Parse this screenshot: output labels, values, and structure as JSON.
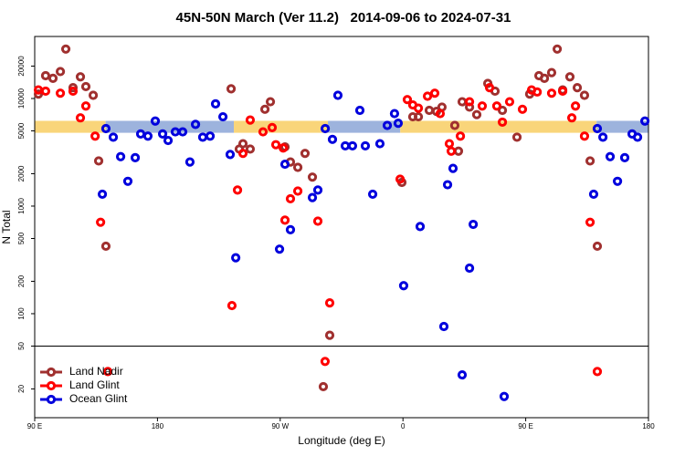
{
  "chart_data": {
    "type": "scatter",
    "title": "45N-50N March (Ver 11.2)   2014-09-06 to 2024-07-31",
    "x_label": "Longitude (deg E)",
    "y_label": "N Total",
    "log_y": true,
    "legend": "bottom-left",
    "divider": 50,
    "xlim": [
      90,
      540
    ],
    "xticks": [
      {
        "value": 90,
        "label": "90 E"
      },
      {
        "value": 180,
        "label": "180"
      },
      {
        "value": 270,
        "label": "90 W"
      },
      {
        "value": 360,
        "label": "0"
      },
      {
        "value": 450,
        "label": "90 E"
      },
      {
        "value": 540,
        "label": "180"
      }
    ],
    "ylim": [
      10.8,
      37700
    ],
    "yticks": [
      20,
      50,
      100,
      200,
      500,
      1000,
      2000,
      5000,
      10000,
      20000
    ],
    "surface_band": {
      "ylim": [
        4800,
        6200
      ],
      "segments": [
        {
          "start": 90,
          "end": 142,
          "color": "#f9d57a"
        },
        {
          "start": 142,
          "end": 236,
          "color": "#9db3dd"
        },
        {
          "start": 236,
          "end": 305,
          "color": "#f9d57a"
        },
        {
          "start": 305,
          "end": 358,
          "color": "#9db3dd"
        },
        {
          "start": 358,
          "end": 502,
          "color": "#f9d57a"
        },
        {
          "start": 502,
          "end": 540,
          "color": "#9db3dd"
        }
      ]
    },
    "series": [
      {
        "name": "Land Nadir",
        "color": "#a0302f",
        "x": [
          92.7,
          98,
          103.4,
          108.8,
          112.8,
          118.1,
          123.5,
          127.5,
          132.9,
          136.9,
          142.2,
          234,
          240,
          242.7,
          248,
          262.8,
          258.8,
          273.5,
          277.5,
          282.9,
          288.2,
          293.6,
          301.6,
          306.3,
          359.2,
          367.2,
          371.3,
          379.3,
          384.6,
          388.6,
          398,
          400.7,
          403.4,
          408.8,
          414.1,
          422.2,
          427.5,
          432.9,
          443.6,
          452.9,
          459.7,
          463.7,
          469,
          473.1,
          477.1,
          482.4,
          487.8,
          493.1,
          497.2,
          502.5
        ],
        "values": [
          11000,
          16300,
          15400,
          17800,
          28800,
          12600,
          15900,
          12900,
          10700,
          2630,
          424,
          12300,
          3390,
          3800,
          3390,
          9330,
          7940,
          3550,
          2570,
          2290,
          3090,
          1860,
          21,
          63,
          1660,
          6760,
          6760,
          7760,
          7590,
          8320,
          5620,
          3240,
          9330,
          8320,
          7080,
          13800,
          11700,
          7760,
          4370,
          11000,
          16300,
          15400,
          17400,
          28800,
          12000,
          15900,
          12600,
          10700,
          2630,
          424
        ]
      },
      {
        "name": "Land Glint",
        "color": "#ff0000",
        "x": [
          92.7,
          98,
          108.8,
          118.1,
          127.5,
          123.5,
          134.3,
          138.3,
          143.6,
          234.6,
          238.7,
          242.7,
          248,
          257.4,
          264.1,
          266.8,
          272.2,
          277.5,
          282.9,
          273.5,
          297.6,
          302.9,
          306.3,
          357.9,
          363.2,
          367.2,
          371.3,
          378,
          383.3,
          387.3,
          395.4,
          394,
          402.1,
          408.8,
          418.1,
          423.5,
          428.8,
          432.9,
          438.2,
          447.6,
          454.3,
          458.4,
          469,
          477.1,
          486.5,
          483.8,
          493.1,
          497.2,
          502.5
        ],
        "values": [
          12000,
          11700,
          11200,
          11700,
          8510,
          6610,
          4470,
          708,
          29,
          119,
          1410,
          3090,
          6310,
          4900,
          5370,
          3720,
          3470,
          1170,
          1380,
          741,
          724,
          36,
          126,
          1780,
          9770,
          8710,
          8130,
          10500,
          11200,
          7240,
          3240,
          3800,
          4470,
          9330,
          8510,
          12600,
          8510,
          6030,
          9330,
          7940,
          12000,
          11500,
          11200,
          11700,
          8510,
          6610,
          4470,
          708,
          29
        ]
      },
      {
        "name": "Ocean Glint",
        "color": "#0000dd",
        "x": [
          139.6,
          142.2,
          147.6,
          153,
          158.3,
          163.7,
          167.7,
          173,
          178.4,
          183.8,
          187.8,
          193.1,
          198.5,
          203.8,
          207.9,
          213.2,
          218.6,
          222.6,
          228,
          233.3,
          237.4,
          269.5,
          273.5,
          277.5,
          293.6,
          297.6,
          303,
          308.3,
          312.3,
          317.7,
          323,
          328.4,
          332.4,
          337.8,
          343.1,
          348.5,
          353.8,
          356.5,
          360.5,
          372.6,
          390,
          392.7,
          396.7,
          403.4,
          408.8,
          411.5,
          434.2,
          502.5,
          499.8,
          506.6,
          511.9,
          517.3,
          522.6,
          528,
          532,
          537.4
        ],
        "values": [
          1290,
          5250,
          4370,
          2880,
          1700,
          2820,
          4680,
          4470,
          6170,
          4680,
          4070,
          4900,
          4900,
          2570,
          5750,
          4370,
          4470,
          8910,
          6760,
          3020,
          331,
          398,
          2450,
          603,
          1200,
          1410,
          5250,
          4170,
          10700,
          3630,
          3630,
          7760,
          3630,
          1290,
          3800,
          5620,
          7240,
          5890,
          182,
          646,
          76,
          1580,
          2240,
          27,
          265,
          676,
          17,
          5250,
          1290,
          4370,
          2880,
          1700,
          2820,
          4680,
          4370,
          6170
        ]
      }
    ]
  }
}
